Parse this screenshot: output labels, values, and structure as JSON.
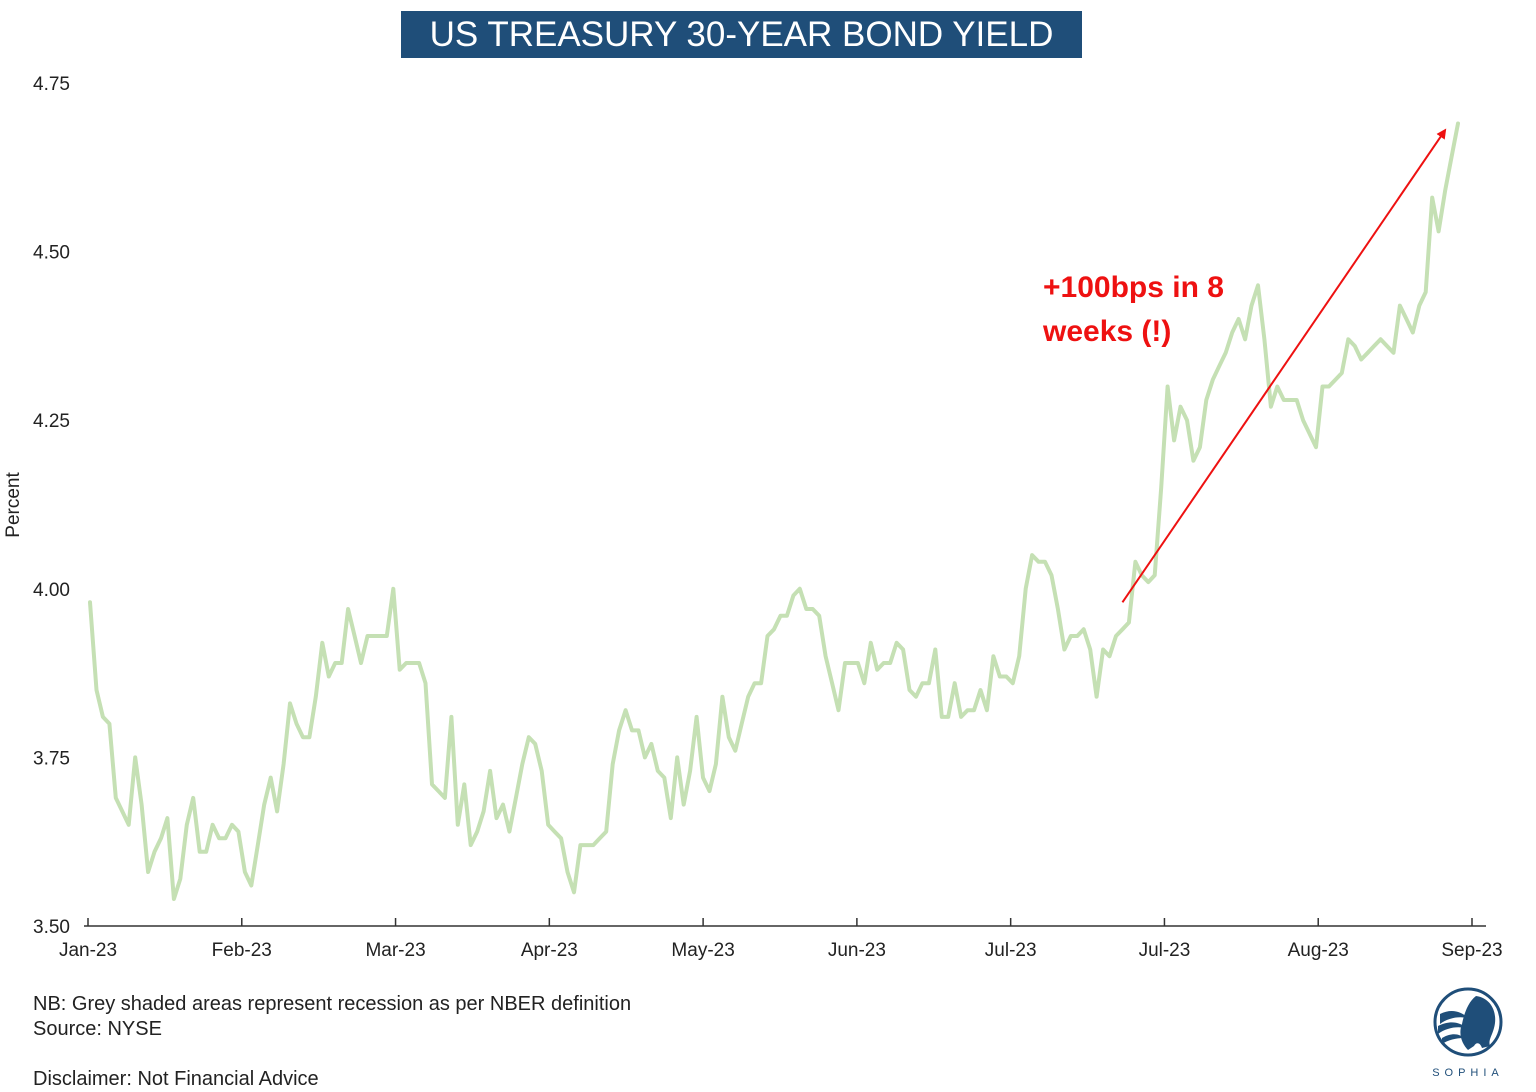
{
  "chart_data": {
    "type": "line",
    "title": "US TREASURY 30-YEAR BOND YIELD",
    "ylabel": "Percent",
    "xlabel": "",
    "ylim": [
      3.5,
      4.75
    ],
    "y_ticks": [
      "3.50",
      "3.75",
      "4.00",
      "4.25",
      "4.50",
      "4.75"
    ],
    "x_ticks": [
      "Jan-23",
      "Feb-23",
      "Mar-23",
      "Apr-23",
      "May-23",
      "Jun-23",
      "Jul-23",
      "Jul-23",
      "Aug-23",
      "Sep-23"
    ],
    "grid": false,
    "legend": "none",
    "line_color": "#c5e0b4",
    "series": [
      {
        "values": [
          3.98,
          3.85,
          3.81,
          3.8,
          3.69,
          3.67,
          3.65,
          3.75,
          3.68,
          3.58,
          3.61,
          3.63,
          3.66,
          3.54,
          3.57,
          3.65,
          3.69,
          3.61,
          3.61,
          3.65,
          3.63,
          3.63,
          3.65,
          3.64,
          3.58,
          3.56,
          3.62,
          3.68,
          3.72,
          3.67,
          3.74,
          3.83,
          3.8,
          3.78,
          3.78,
          3.84,
          3.92,
          3.87,
          3.89,
          3.89,
          3.97,
          3.93,
          3.89,
          3.93,
          3.93,
          3.93,
          3.93,
          4.0,
          3.88,
          3.89,
          3.89,
          3.89,
          3.86,
          3.71,
          3.7,
          3.69,
          3.81,
          3.65,
          3.71,
          3.62,
          3.64,
          3.67,
          3.73,
          3.66,
          3.68,
          3.64,
          3.69,
          3.74,
          3.78,
          3.77,
          3.73,
          3.65,
          3.64,
          3.63,
          3.58,
          3.55,
          3.62,
          3.62,
          3.62,
          3.63,
          3.64,
          3.74,
          3.79,
          3.82,
          3.79,
          3.79,
          3.75,
          3.77,
          3.73,
          3.72,
          3.66,
          3.75,
          3.68,
          3.73,
          3.81,
          3.72,
          3.7,
          3.74,
          3.84,
          3.78,
          3.76,
          3.8,
          3.84,
          3.86,
          3.86,
          3.93,
          3.94,
          3.96,
          3.96,
          3.99,
          4.0,
          3.97,
          3.97,
          3.96,
          3.9,
          3.86,
          3.82,
          3.89,
          3.89,
          3.89,
          3.86,
          3.92,
          3.88,
          3.89,
          3.89,
          3.92,
          3.91,
          3.85,
          3.84,
          3.86,
          3.86,
          3.91,
          3.81,
          3.81,
          3.86,
          3.81,
          3.82,
          3.82,
          3.85,
          3.82,
          3.9,
          3.87,
          3.87,
          3.86,
          3.9,
          4.0,
          4.05,
          4.04,
          4.04,
          4.02,
          3.97,
          3.91,
          3.93,
          3.93,
          3.94,
          3.91,
          3.84,
          3.91,
          3.9,
          3.93,
          3.94,
          3.95,
          4.04,
          4.02,
          4.01,
          4.02,
          4.15,
          4.3,
          4.22,
          4.27,
          4.25,
          4.19,
          4.21,
          4.28,
          4.31,
          4.33,
          4.35,
          4.38,
          4.4,
          4.37,
          4.42,
          4.45,
          4.37,
          4.27,
          4.3,
          4.28,
          4.28,
          4.28,
          4.25,
          4.23,
          4.21,
          4.3,
          4.3,
          4.31,
          4.32,
          4.37,
          4.36,
          4.34,
          4.35,
          4.36,
          4.37,
          4.36,
          4.35,
          4.42,
          4.4,
          4.38,
          4.42,
          4.44,
          4.58,
          4.53,
          4.59,
          4.64,
          4.69
        ]
      }
    ],
    "annotation": {
      "text_line1": "+100bps in 8",
      "text_line2": "weeks (!)",
      "color": "#ee1111",
      "arrow_from": {
        "x_index": 160,
        "y": 3.98
      },
      "arrow_to": {
        "x_index": 210,
        "y": 4.68
      }
    }
  },
  "footer": {
    "note": "NB: Grey shaded areas represent recession as per NBER definition",
    "source": "Source: NYSE",
    "disclaimer": "Disclaimer: Not Financial Advice"
  },
  "logo": {
    "text": "SOPHIA",
    "icon": "sophia-profile-logo-icon",
    "color": "#1f4e79"
  }
}
